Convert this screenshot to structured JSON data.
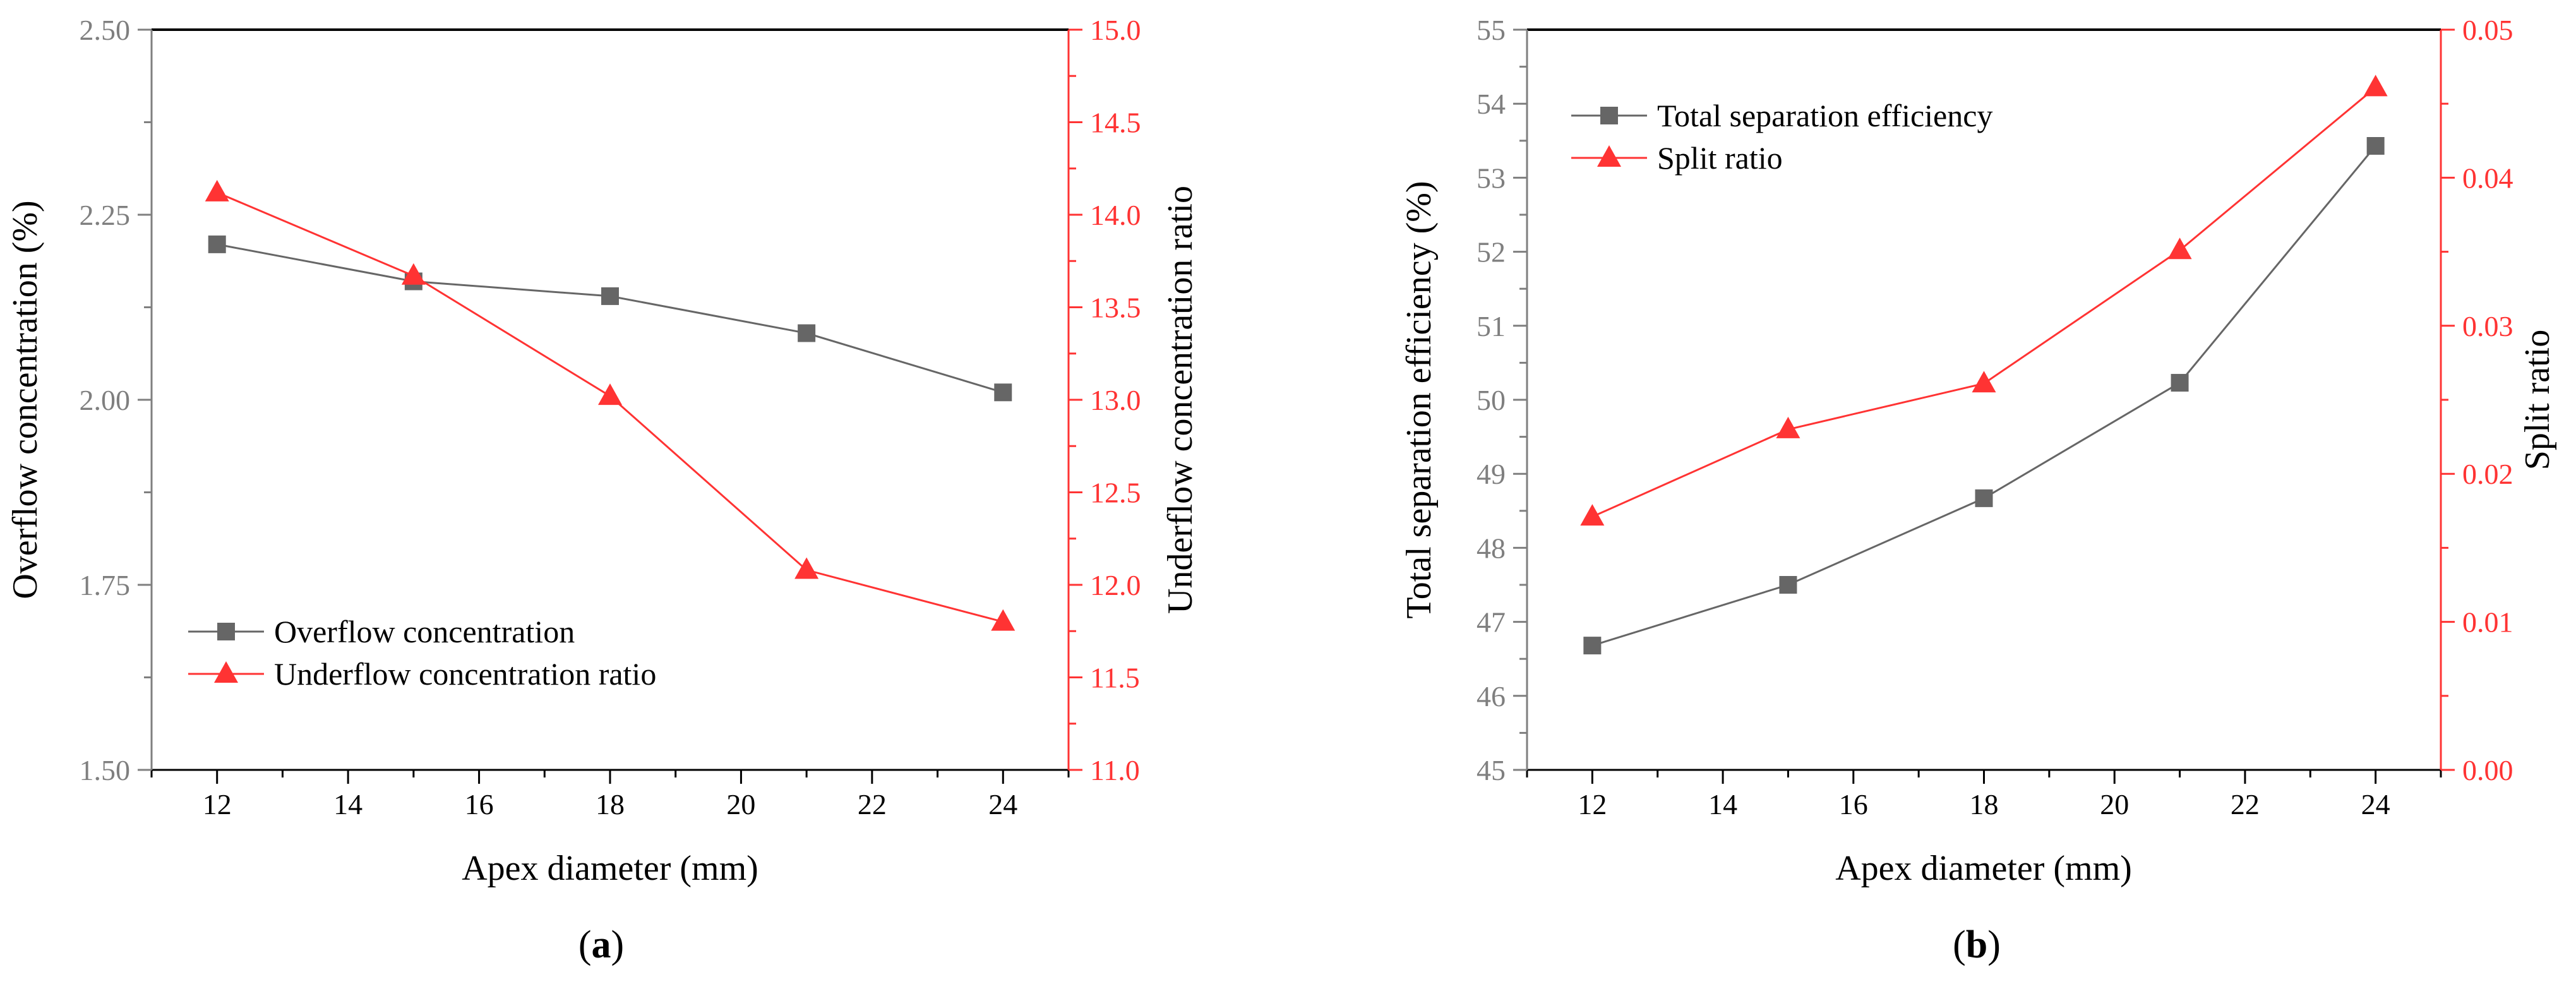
{
  "colors": {
    "left_axis": "#7f7f7f",
    "right_axis": "#ff3333",
    "series_gray": "#666666",
    "series_red": "#ff3333",
    "frame": "#000000",
    "text": "#000000"
  },
  "captions": [
    "(a)",
    "(b)"
  ],
  "chart_data": [
    {
      "type": "line",
      "panel": "a",
      "title": "",
      "xlabel": "Apex diameter (mm)",
      "ylabel": "Overflow concentration (%)",
      "y2label": "Underflow concentration ratio",
      "xlim": [
        11,
        25
      ],
      "ylim": [
        1.5,
        2.5
      ],
      "y2lim": [
        11.0,
        15.0
      ],
      "x_ticks": [
        "12",
        "14",
        "16",
        "18",
        "20",
        "22",
        "24"
      ],
      "y_ticks": [
        "1.50",
        "1.75",
        "2.00",
        "2.25",
        "2.50"
      ],
      "y2_ticks": [
        "11.0",
        "11.5",
        "12.0",
        "12.5",
        "13.0",
        "13.5",
        "14.0",
        "14.5",
        "15.0"
      ],
      "legend_position": "lower-left",
      "series": [
        {
          "name": "Overflow concentration",
          "axis": "left",
          "marker": "square",
          "x": [
            12,
            15,
            18,
            21,
            24
          ],
          "values": [
            2.21,
            2.16,
            2.14,
            2.09,
            2.01
          ]
        },
        {
          "name": "Underflow concentration ratio",
          "axis": "right",
          "marker": "triangle",
          "x": [
            12,
            15,
            18,
            21,
            24
          ],
          "values": [
            14.12,
            13.67,
            13.02,
            12.08,
            11.8
          ]
        }
      ]
    },
    {
      "type": "line",
      "panel": "b",
      "title": "",
      "xlabel": "Apex diameter (mm)",
      "ylabel": "Total separation efficiency (%)",
      "y2label": "Split ratio",
      "xlim": [
        11,
        25
      ],
      "ylim": [
        45,
        55
      ],
      "y2lim": [
        0,
        0.05
      ],
      "x_ticks": [
        "12",
        "14",
        "16",
        "18",
        "20",
        "22",
        "24"
      ],
      "y_ticks": [
        "45",
        "46",
        "47",
        "48",
        "49",
        "50",
        "51",
        "52",
        "53",
        "54",
        "55"
      ],
      "y2_ticks": [
        "0.00",
        "0.01",
        "0.02",
        "0.03",
        "0.04",
        "0.05"
      ],
      "legend_position": "top-left",
      "series": [
        {
          "name": "Total separation efficiency",
          "axis": "left",
          "marker": "square",
          "x": [
            12,
            15,
            18,
            21,
            24
          ],
          "values": [
            46.68,
            47.5,
            48.67,
            50.23,
            53.43
          ]
        },
        {
          "name": "Split ratio",
          "axis": "right",
          "marker": "triangle",
          "x": [
            12,
            15,
            18,
            21,
            24
          ],
          "values": [
            0.0171,
            0.023,
            0.0261,
            0.0351,
            0.0461
          ]
        }
      ]
    }
  ]
}
